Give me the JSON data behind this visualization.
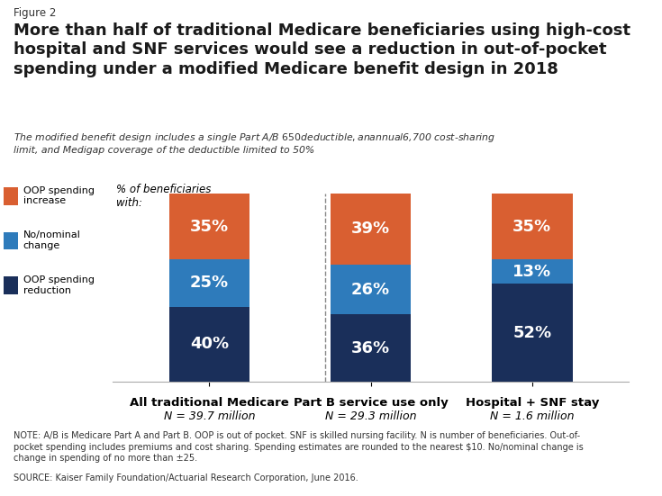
{
  "figure_label": "Figure 2",
  "title": "More than half of traditional Medicare beneficiaries using high-cost\nhospital and SNF services would see a reduction in out-of-pocket\nspending under a modified Medicare benefit design in 2018",
  "subtitle": "The modified benefit design includes a single Part A/B $650 deductible, an annual $6,700 cost-sharing\nlimit, and Medigap coverage of the deductible limited to 50%",
  "categories": [
    "All traditional Medicare",
    "Part B service use only",
    "Hospital + SNF stay"
  ],
  "subtitles_n": [
    "N = 39.7 million",
    "N = 29.3 million",
    "N = 1.6 million"
  ],
  "oop_reduction": [
    40,
    36,
    52
  ],
  "no_nominal": [
    25,
    26,
    13
  ],
  "oop_increase": [
    35,
    39,
    35
  ],
  "color_reduction": "#1a2f5a",
  "color_nominal": "#2e7bbb",
  "color_increase": "#d95f31",
  "ylabel": "% of beneficiaries\nwith:",
  "legend_labels": [
    "OOP spending\nincrease",
    "No/nominal\nchange",
    "OOP spending\nreduction"
  ],
  "note": "NOTE: A/B is Medicare Part A and Part B. OOP is out of pocket. SNF is skilled nursing facility. N is number of beneficiaries. Out-of-\npocket spending includes premiums and cost sharing. Spending estimates are rounded to the nearest $10. No/nominal change is\nchange in spending of no more than ±25.",
  "source": "SOURCE: Kaiser Family Foundation/Actuarial Research Corporation, June 2016.",
  "bar_width": 0.5,
  "bg_color": "#ffffff"
}
